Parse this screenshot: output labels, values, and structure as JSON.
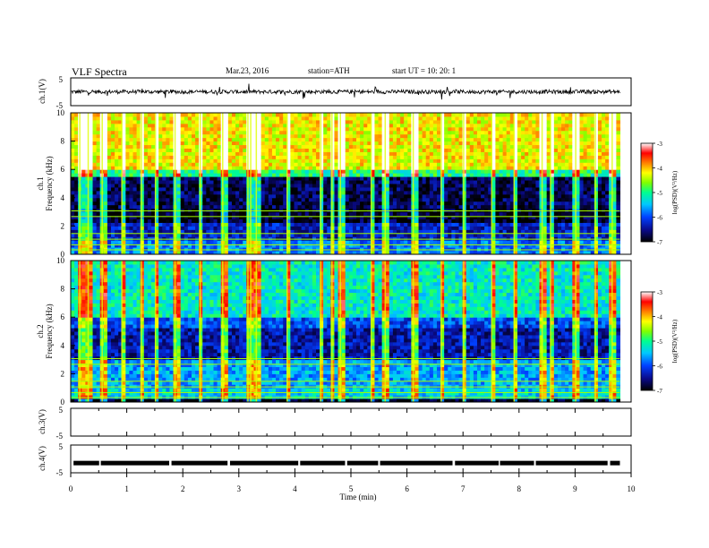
{
  "header": {
    "title": "VLF  Spectra",
    "date": "Mar.23, 2016",
    "station": "station=ATH",
    "start": "start  UT  =    10: 20: 1"
  },
  "colors": {
    "colormap": [
      "#000000",
      "#0a0a8a",
      "#0040ff",
      "#00c8ff",
      "#00ff90",
      "#80ff00",
      "#ffff00",
      "#ff8000",
      "#ff0000",
      "#ffffff"
    ],
    "trace": "#000000",
    "axes": "#000000"
  },
  "chart_data": [
    {
      "type": "line",
      "panel": "ch1-waveform",
      "ylabel": "ch.1(V)",
      "ylim": [
        -5,
        5
      ],
      "yticks": [
        "5",
        "-5"
      ],
      "xlim": [
        0,
        10
      ],
      "description_values": {
        "mean_level": 0,
        "amplitude_approx": 1,
        "data_end_min": 9.8
      }
    },
    {
      "type": "heatmap",
      "panel": "ch1-spectrogram",
      "ylabel_channel": "ch.1",
      "ylabel": "Frequency  (kHz)",
      "ylim": [
        0,
        10
      ],
      "yticks": [
        "0",
        "2",
        "4",
        "6",
        "8",
        "10"
      ],
      "xlim": [
        0,
        10
      ],
      "data_end_min": 9.8,
      "colorbar": {
        "label": "log(PSD)(V²/Hz)",
        "range": [
          -7,
          -3
        ],
        "ticks": [
          "-3",
          "-4",
          "-5",
          "-6",
          "-7"
        ]
      },
      "bands": [
        {
          "from_khz": 6.0,
          "to_khz": 10.0,
          "logpsd": -4.2
        },
        {
          "from_khz": 5.5,
          "to_khz": 6.0,
          "logpsd": -5.0
        },
        {
          "from_khz": 3.2,
          "to_khz": 5.5,
          "logpsd": -6.7
        },
        {
          "from_khz": 2.2,
          "to_khz": 3.2,
          "logpsd": -6.9
        },
        {
          "from_khz": 1.0,
          "to_khz": 2.2,
          "logpsd": -6.3
        },
        {
          "from_khz": 0.0,
          "to_khz": 1.0,
          "logpsd": -5.8
        }
      ],
      "spherics_min": [
        0.15,
        0.3,
        0.55,
        0.9,
        1.25,
        1.5,
        1.85,
        2.3,
        2.7,
        3.15,
        3.2,
        3.3,
        3.85,
        4.45,
        4.65,
        4.8,
        5.35,
        5.6,
        6.1,
        6.6,
        7.0,
        7.5,
        7.9,
        8.4,
        8.55,
        9.0,
        9.35,
        9.65
      ]
    },
    {
      "type": "heatmap",
      "panel": "ch2-spectrogram",
      "ylabel_channel": "ch.2",
      "ylabel": "Frequency  (kHz)",
      "ylim": [
        0,
        10
      ],
      "yticks": [
        "0",
        "2",
        "4",
        "6",
        "8",
        "10"
      ],
      "xlim": [
        0,
        10
      ],
      "data_end_min": 9.8,
      "colorbar": {
        "label": "log(PSD)(V²/Hz)",
        "range": [
          -7,
          -3
        ],
        "ticks": [
          "-3",
          "-4",
          "-5",
          "-6",
          "-7"
        ]
      },
      "bands": [
        {
          "from_khz": 6.0,
          "to_khz": 10.0,
          "logpsd": -5.2
        },
        {
          "from_khz": 5.2,
          "to_khz": 6.0,
          "logpsd": -6.0
        },
        {
          "from_khz": 3.0,
          "to_khz": 5.2,
          "logpsd": -6.4
        },
        {
          "from_khz": 1.0,
          "to_khz": 3.0,
          "logpsd": -5.6
        },
        {
          "from_khz": 0.2,
          "to_khz": 1.0,
          "logpsd": -5.4
        },
        {
          "from_khz": 0.0,
          "to_khz": 0.2,
          "logpsd": -7.0
        }
      ],
      "spherics_min": [
        0.15,
        0.3,
        0.55,
        0.9,
        1.25,
        1.5,
        1.85,
        2.3,
        2.7,
        3.15,
        3.2,
        3.3,
        3.85,
        4.45,
        4.65,
        4.8,
        5.35,
        5.6,
        6.1,
        6.6,
        7.0,
        7.5,
        7.9,
        8.4,
        8.55,
        9.0,
        9.35,
        9.65
      ]
    },
    {
      "type": "line",
      "panel": "ch3-waveform",
      "ylabel": "ch.3(V)",
      "ylim": [
        -5,
        5
      ],
      "yticks": [
        "5",
        "-5"
      ],
      "xlim": [
        0,
        10
      ]
    },
    {
      "type": "line",
      "panel": "ch4-waveform",
      "ylabel": "ch.4(V)",
      "ylim": [
        -5,
        5
      ],
      "yticks": [
        "5",
        "-5"
      ],
      "xlim": [
        0,
        10
      ],
      "description_values": {
        "mean_level": -1.5,
        "data_end_min": 9.8
      }
    }
  ],
  "xaxis": {
    "label": "Time  (min)",
    "ticks": [
      "0",
      "1",
      "2",
      "3",
      "4",
      "5",
      "6",
      "7",
      "8",
      "9",
      "10"
    ],
    "range": [
      0,
      10
    ]
  }
}
